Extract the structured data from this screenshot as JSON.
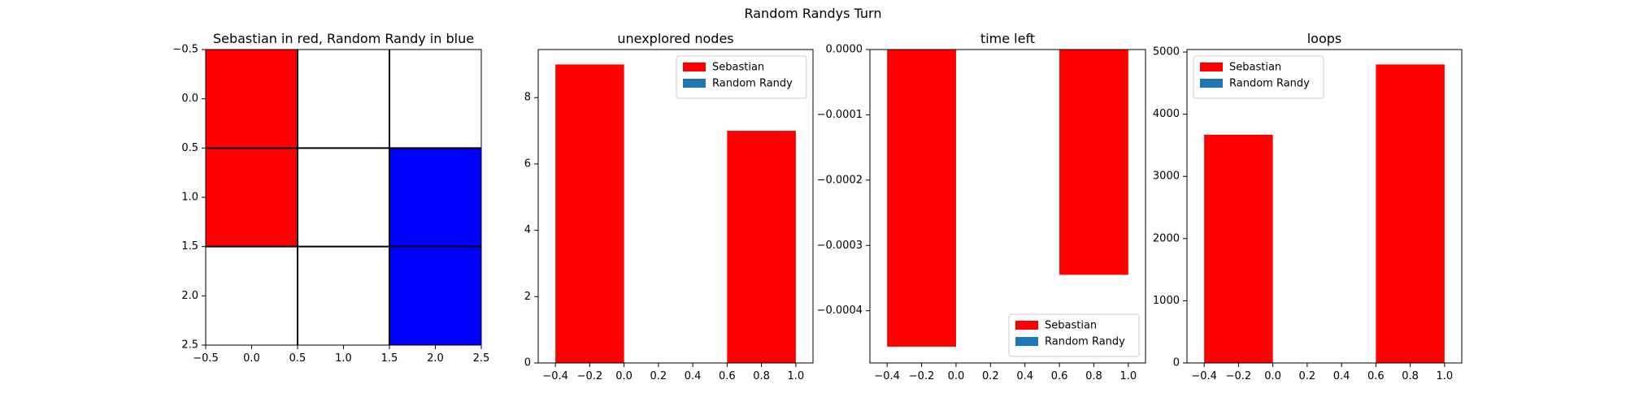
{
  "figure_title": "Random Randys Turn",
  "colors": {
    "sebastian": "#ff0000",
    "random_randy": "#1f77b4",
    "board_randy": "#0000ff",
    "empty": "#ffffff"
  },
  "chart_data": [
    {
      "type": "heatmap",
      "title": "Sebastian in red, Random Randy in blue",
      "xlim": [
        -0.5,
        2.5
      ],
      "ylim": [
        2.5,
        -0.5
      ],
      "xticks": [
        -0.5,
        0.0,
        0.5,
        1.0,
        1.5,
        2.0,
        2.5
      ],
      "yticks": [
        -0.5,
        0.0,
        0.5,
        1.0,
        1.5,
        2.0,
        2.5
      ],
      "grid_lines": [
        0.5,
        1.5
      ],
      "cells": [
        [
          "Sebastian",
          "empty",
          "empty"
        ],
        [
          "Sebastian",
          "empty",
          "Random Randy"
        ],
        [
          "empty",
          "empty",
          "Random Randy"
        ]
      ]
    },
    {
      "type": "bar",
      "title": "unexplored nodes",
      "legend_position": "top-right",
      "xlim": [
        -0.5,
        1.1
      ],
      "ylim": [
        0,
        9.45
      ],
      "xticks": [
        -0.4,
        -0.2,
        0.0,
        0.2,
        0.4,
        0.6,
        0.8,
        1.0
      ],
      "yticks": [
        0,
        2,
        4,
        6,
        8
      ],
      "bar_width": 0.4,
      "series": [
        {
          "name": "Sebastian",
          "x": [
            -0.2,
            0.8
          ],
          "values": [
            9,
            7
          ]
        },
        {
          "name": "Random Randy",
          "x": [],
          "values": []
        }
      ]
    },
    {
      "type": "bar",
      "title": "time left",
      "legend_position": "bottom-right",
      "xlim": [
        -0.5,
        1.1
      ],
      "ylim": [
        -0.00048,
        0
      ],
      "xticks": [
        -0.4,
        -0.2,
        0.0,
        0.2,
        0.4,
        0.6,
        0.8,
        1.0
      ],
      "yticks": [
        0,
        -0.0001,
        -0.0002,
        -0.0003,
        -0.0004
      ],
      "ytick_labels": [
        "0.0000",
        "−0.0001",
        "−0.0002",
        "−0.0003",
        "−0.0004"
      ],
      "bar_width": 0.4,
      "series": [
        {
          "name": "Sebastian",
          "x": [
            -0.2,
            0.8
          ],
          "values": [
            -0.000455,
            -0.000345
          ]
        },
        {
          "name": "Random Randy",
          "x": [],
          "values": []
        }
      ]
    },
    {
      "type": "bar",
      "title": "loops",
      "legend_position": "top-left",
      "xlim": [
        -0.5,
        1.1
      ],
      "ylim": [
        0,
        5040
      ],
      "xticks": [
        -0.4,
        -0.2,
        0.0,
        0.2,
        0.4,
        0.6,
        0.8,
        1.0
      ],
      "yticks": [
        0,
        1000,
        2000,
        3000,
        4000,
        5000
      ],
      "bar_width": 0.4,
      "series": [
        {
          "name": "Sebastian",
          "x": [
            -0.2,
            0.8
          ],
          "values": [
            3670,
            4800
          ]
        },
        {
          "name": "Random Randy",
          "x": [],
          "values": []
        }
      ]
    }
  ]
}
